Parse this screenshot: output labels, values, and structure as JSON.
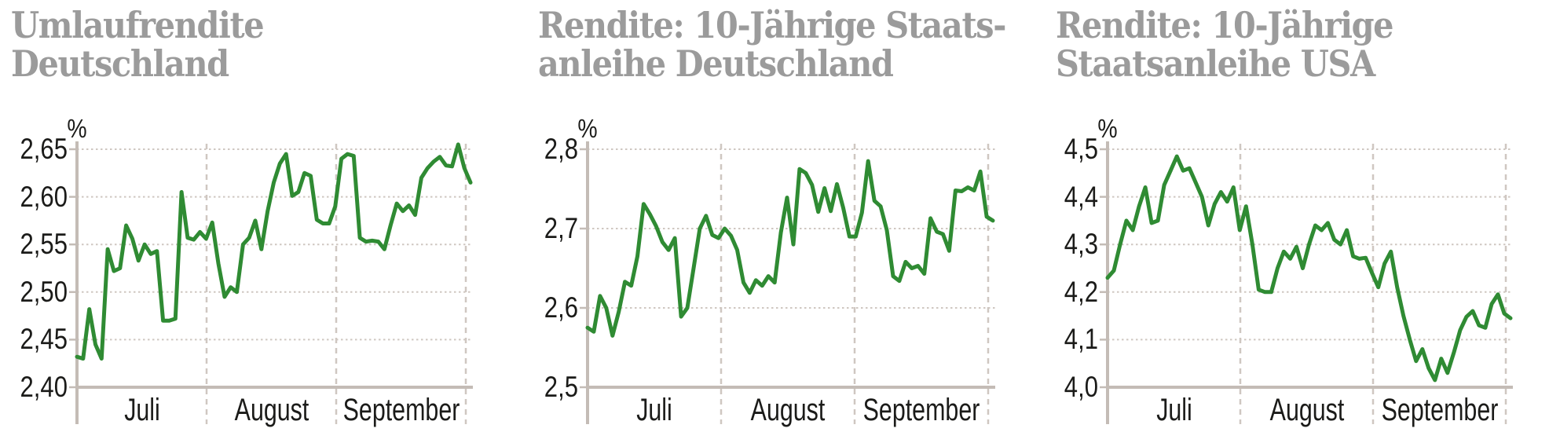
{
  "colors": {
    "line": "#2f8b33",
    "grid_dotted": "#cfc7c1",
    "axis": "#c4bcb6",
    "title_gray": "#9b9b9b",
    "label_text": "#1b1b19",
    "background": "#ffffff"
  },
  "chart_data": [
    {
      "type": "line",
      "title_lines": [
        "Umlaufrendite",
        "Deutschland"
      ],
      "unit": "%",
      "x_categories": [
        "Juli",
        "August",
        "September"
      ],
      "y_ticks": [
        "2,65",
        "2,60",
        "2,55",
        "2,50",
        "2,45",
        "2,40"
      ],
      "y_tick_values": [
        2.65,
        2.6,
        2.55,
        2.5,
        2.45,
        2.4
      ],
      "ylim": [
        2.4,
        2.65
      ],
      "grid": {
        "horizontal": "dotted",
        "vertical": "dashed month separators",
        "baseline": "solid"
      },
      "legend": "none",
      "series": [
        {
          "name": "Umlaufrendite Deutschland",
          "values": [
            2.432,
            2.43,
            2.482,
            2.445,
            2.43,
            2.545,
            2.522,
            2.525,
            2.57,
            2.556,
            2.533,
            2.55,
            2.54,
            2.543,
            2.47,
            2.47,
            2.472,
            2.605,
            2.557,
            2.555,
            2.563,
            2.556,
            2.573,
            2.53,
            2.495,
            2.505,
            2.5,
            2.55,
            2.557,
            2.575,
            2.545,
            2.585,
            2.615,
            2.635,
            2.645,
            2.601,
            2.605,
            2.625,
            2.622,
            2.576,
            2.572,
            2.572,
            2.59,
            2.64,
            2.645,
            2.643,
            2.557,
            2.553,
            2.554,
            2.553,
            2.545,
            2.57,
            2.593,
            2.585,
            2.591,
            2.581,
            2.62,
            2.63,
            2.637,
            2.642,
            2.633,
            2.632,
            2.655,
            2.63,
            2.615
          ]
        }
      ]
    },
    {
      "type": "line",
      "title_lines": [
        "Rendite: 10-Jährige Staats-",
        "anleihe Deutschland"
      ],
      "unit": "%",
      "x_categories": [
        "Juli",
        "August",
        "September"
      ],
      "y_ticks": [
        "2,8",
        "2,7",
        "2,6",
        "2,5"
      ],
      "y_tick_values": [
        2.8,
        2.7,
        2.6,
        2.5
      ],
      "ylim": [
        2.5,
        2.8
      ],
      "grid": {
        "horizontal": "dotted",
        "vertical": "dashed month separators",
        "baseline": "solid"
      },
      "legend": "none",
      "series": [
        {
          "name": "Rendite 10-jährige Staatsanleihe Deutschland",
          "values": [
            2.575,
            2.57,
            2.615,
            2.6,
            2.565,
            2.595,
            2.633,
            2.628,
            2.665,
            2.731,
            2.718,
            2.703,
            2.683,
            2.673,
            2.688,
            2.589,
            2.6,
            2.65,
            2.7,
            2.716,
            2.692,
            2.688,
            2.7,
            2.691,
            2.673,
            2.632,
            2.619,
            2.635,
            2.628,
            2.64,
            2.632,
            2.695,
            2.739,
            2.68,
            2.775,
            2.77,
            2.755,
            2.721,
            2.751,
            2.722,
            2.756,
            2.726,
            2.69,
            2.69,
            2.72,
            2.785,
            2.735,
            2.728,
            2.698,
            2.64,
            2.634,
            2.658,
            2.65,
            2.653,
            2.643,
            2.713,
            2.696,
            2.693,
            2.672,
            2.748,
            2.747,
            2.752,
            2.748,
            2.772,
            2.715,
            2.71
          ]
        }
      ]
    },
    {
      "type": "line",
      "title_lines": [
        "Rendite: 10-Jährige",
        "Staatsanleihe USA"
      ],
      "unit": "%",
      "x_categories": [
        "Juli",
        "August",
        "September"
      ],
      "y_ticks": [
        "4,5",
        "4,4",
        "4,3",
        "4,2",
        "4,1",
        "4,0"
      ],
      "y_tick_values": [
        4.5,
        4.4,
        4.3,
        4.2,
        4.1,
        4.0
      ],
      "ylim": [
        4.0,
        4.5
      ],
      "grid": {
        "horizontal": "dotted",
        "vertical": "dashed month separators",
        "baseline": "solid"
      },
      "legend": "none",
      "series": [
        {
          "name": "Rendite 10-jährige Staatsanleihe USA",
          "values": [
            4.23,
            4.245,
            4.3,
            4.35,
            4.33,
            4.38,
            4.42,
            4.345,
            4.35,
            4.425,
            4.455,
            4.485,
            4.455,
            4.46,
            4.43,
            4.4,
            4.34,
            4.385,
            4.41,
            4.39,
            4.42,
            4.33,
            4.38,
            4.3,
            4.205,
            4.2,
            4.2,
            4.25,
            4.285,
            4.27,
            4.295,
            4.25,
            4.3,
            4.34,
            4.33,
            4.345,
            4.31,
            4.3,
            4.33,
            4.275,
            4.27,
            4.272,
            4.24,
            4.21,
            4.26,
            4.285,
            4.21,
            4.15,
            4.1,
            4.055,
            4.08,
            4.04,
            4.015,
            4.06,
            4.03,
            4.073,
            4.12,
            4.148,
            4.16,
            4.13,
            4.125,
            4.175,
            4.195,
            4.155,
            4.145
          ]
        }
      ]
    }
  ]
}
